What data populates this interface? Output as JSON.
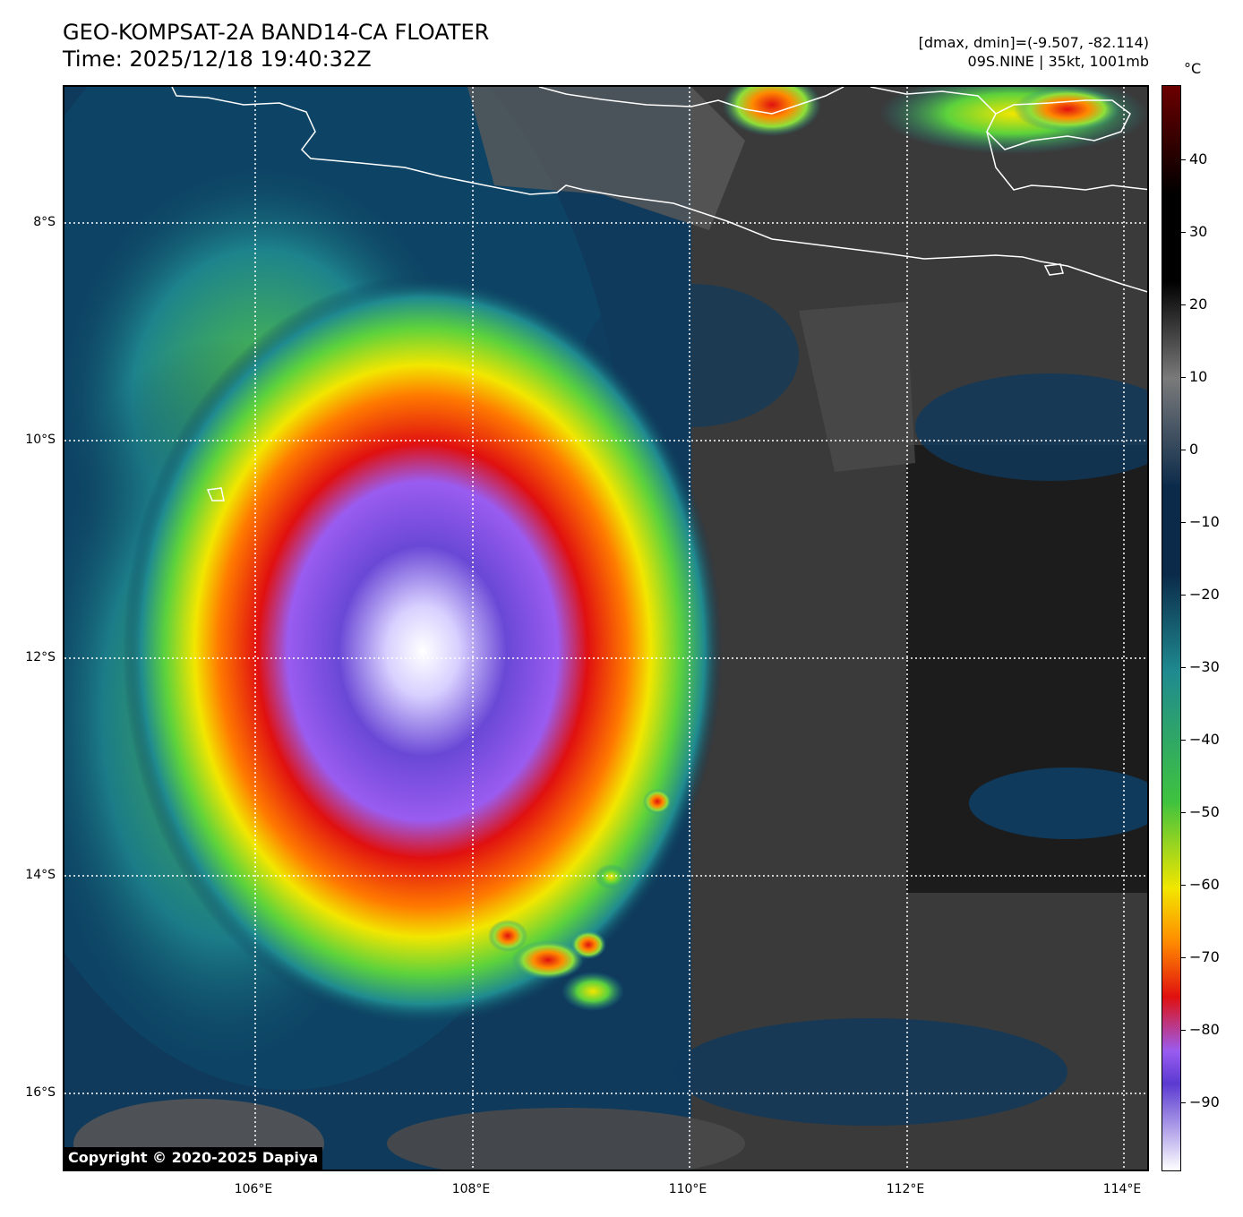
{
  "header": {
    "title_line1": "GEO-KOMPSAT-2A BAND14-CA FLOATER",
    "title_line2": "Time: 2025/12/18 19:40:32Z",
    "info_line1": "[dmax, dmin]=(-9.507, -82.114)",
    "info_line2": "09S.NINE | 35kt, 1001mb"
  },
  "map": {
    "lat_labels": [
      "8°S",
      "10°S",
      "12°S",
      "14°S",
      "16°S"
    ],
    "lon_labels": [
      "106°E",
      "108°E",
      "110°E",
      "112°E",
      "114°E"
    ],
    "copyright": "Copyright © 2020-2025 Dapiya"
  },
  "colorbar": {
    "unit": "°C",
    "labels": [
      "40",
      "30",
      "20",
      "10",
      "0",
      "−10",
      "−20",
      "−30",
      "−40",
      "−50",
      "−60",
      "−70",
      "−80",
      "−90"
    ],
    "colors": {
      "warm_top": "#6b0000",
      "black": "#000000",
      "gray": "#7a7a7a",
      "navy": "#0b2a4a",
      "teal": "#1f8a90",
      "green": "#3fc23f",
      "yellow": "#f2e600",
      "orange": "#ff8a00",
      "red": "#e01010",
      "purple": "#9a5cf0",
      "indigo": "#5a3ad0",
      "white": "#ffffff"
    }
  }
}
